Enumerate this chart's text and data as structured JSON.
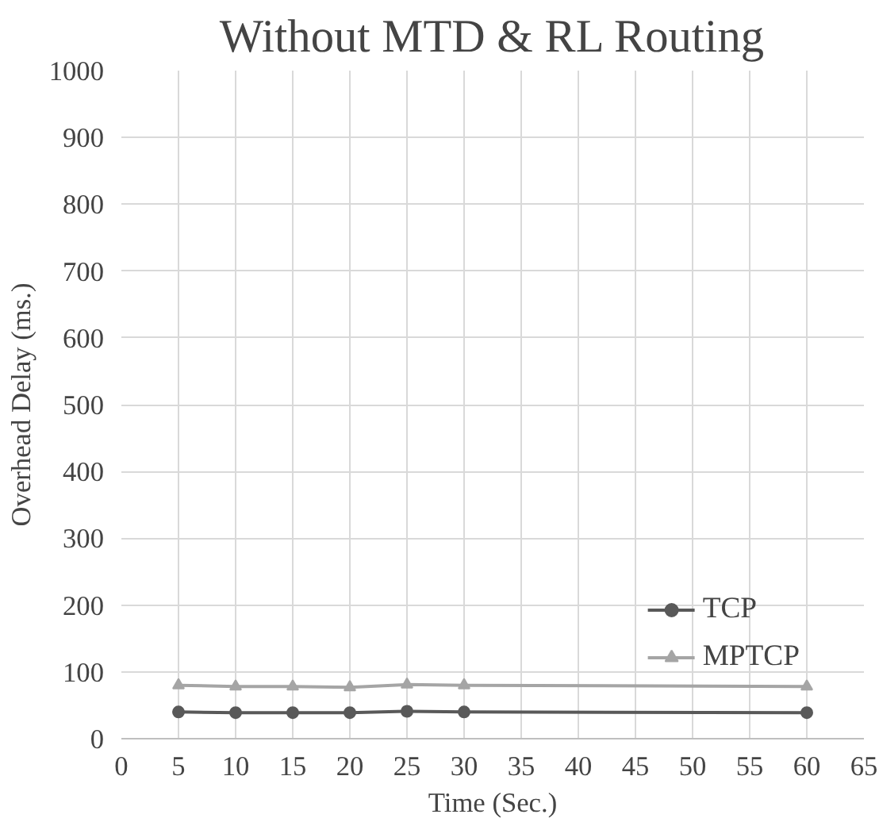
{
  "chart_data": {
    "type": "line",
    "title": "Without MTD & RL Routing",
    "xlabel": "Time (Sec.)",
    "ylabel": "Overhead Delay (ms.)",
    "x": [
      5,
      10,
      15,
      20,
      25,
      30,
      60
    ],
    "series": [
      {
        "name": "TCP",
        "color": "#595959",
        "marker": "circle",
        "values": [
          40,
          39,
          39,
          39,
          41,
          40,
          39
        ]
      },
      {
        "name": "MPTCP",
        "color": "#a5a5a5",
        "marker": "triangle",
        "values": [
          80,
          78,
          78,
          77,
          81,
          80,
          78
        ]
      }
    ],
    "xlim": [
      0,
      65
    ],
    "xticks": [
      0,
      5,
      10,
      15,
      20,
      25,
      30,
      35,
      40,
      45,
      50,
      55,
      60,
      65
    ],
    "ylim": [
      0,
      1000
    ],
    "yticks": [
      0,
      100,
      200,
      300,
      400,
      500,
      600,
      700,
      800,
      900,
      1000
    ],
    "grid": true,
    "legend": "bottom right",
    "line_style": "solid"
  }
}
